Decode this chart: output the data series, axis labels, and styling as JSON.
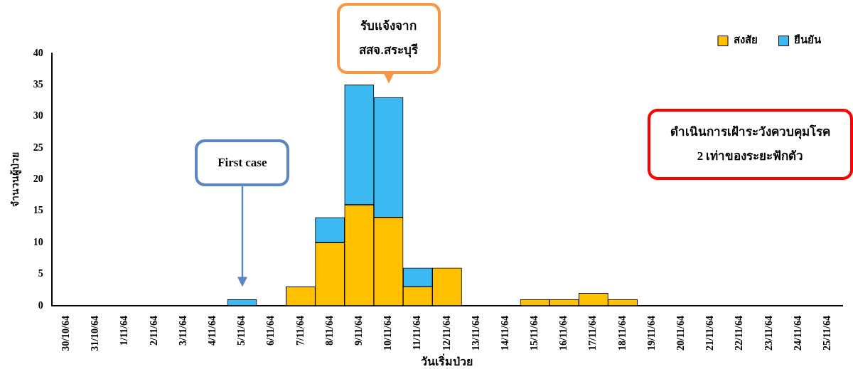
{
  "chart_data": {
    "type": "bar",
    "stacked": true,
    "xlabel": "วันเริ่มป่วย",
    "ylabel": "จำนวนผู้ป่วย",
    "categories": [
      "30/10/64",
      "31/10/64",
      "1/11/64",
      "2/11/64",
      "3/11/64",
      "4/11/64",
      "5/11/64",
      "6/11/64",
      "7/11/64",
      "8/11/64",
      "9/11/64",
      "10/11/64",
      "11/11/64",
      "12/11/64",
      "13/11/64",
      "14/11/64",
      "15/11/64",
      "16/11/64",
      "17/11/64",
      "18/11/64",
      "19/11/64",
      "20/11/64",
      "21/11/64",
      "22/11/64",
      "23/11/64",
      "24/11/64",
      "25/11/64"
    ],
    "series": [
      {
        "name": "สงสัย",
        "color": "#ffc000",
        "values": [
          0,
          0,
          0,
          0,
          0,
          0,
          0,
          0,
          3,
          10,
          16,
          14,
          3,
          6,
          0,
          0,
          1,
          1,
          2,
          1,
          0,
          0,
          0,
          0,
          0,
          0,
          0
        ]
      },
      {
        "name": "ยืนยัน",
        "color": "#3cb9f0",
        "values": [
          0,
          0,
          0,
          0,
          0,
          0,
          1,
          0,
          0,
          4,
          19,
          19,
          3,
          0,
          0,
          0,
          0,
          0,
          0,
          0,
          0,
          0,
          0,
          0,
          0,
          0,
          0
        ]
      }
    ],
    "ylim": [
      0,
      40
    ],
    "yticks": [
      0,
      5,
      10,
      15,
      20,
      25,
      30,
      35,
      40
    ],
    "grid": false,
    "legend": "top right",
    "annotations": [
      "First case",
      "รับแจ้งจาก\nสสจ.สระบุรี",
      "ดำเนินการเฝ้าระวังควบคุมโรค\n2 เท่าของระยะฟักตัว"
    ]
  }
}
